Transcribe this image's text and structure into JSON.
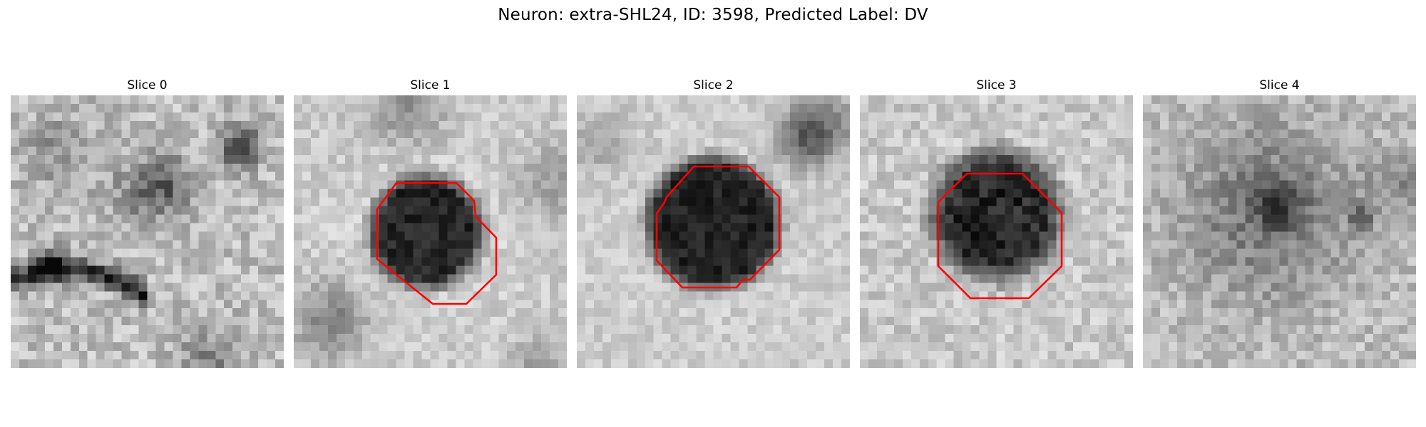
{
  "figure": {
    "title": "Neuron: extra-SHL24, ID: 3598, Predicted Label: DV",
    "contour_color": "#ff0000",
    "slices": [
      {
        "title": "Slice 0",
        "has_contour": false
      },
      {
        "title": "Slice 1",
        "has_contour": true
      },
      {
        "title": "Slice 2",
        "has_contour": true
      },
      {
        "title": "Slice 3",
        "has_contour": true
      },
      {
        "title": "Slice 4",
        "has_contour": false
      }
    ]
  }
}
